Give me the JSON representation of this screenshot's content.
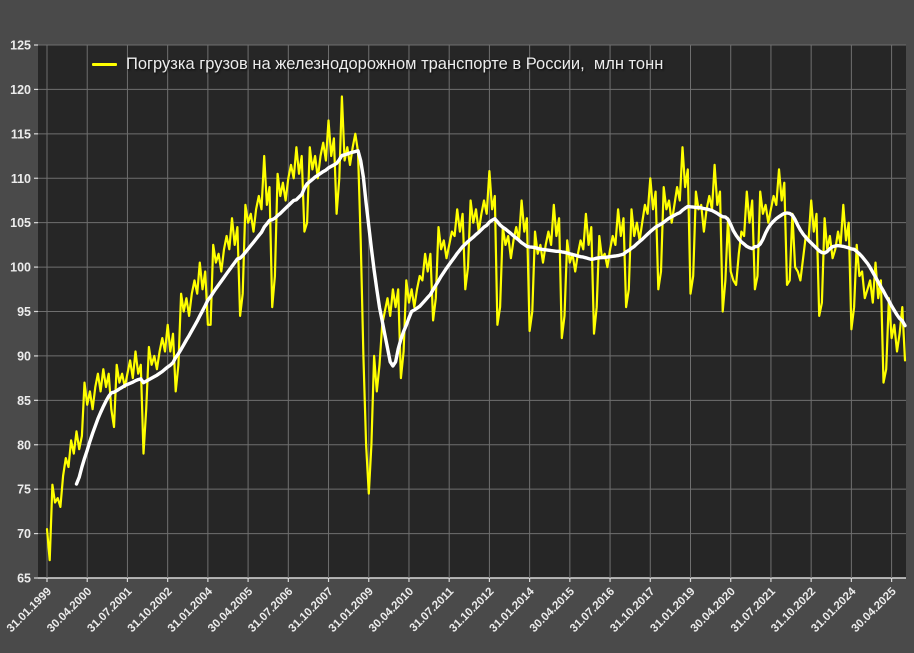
{
  "chart": {
    "legend_label": "Погрузка грузов на железнодорожном транспорте в России,  млн тонн"
  },
  "chart_data": {
    "type": "line",
    "title": "",
    "legend_position": "top-left",
    "grid": true,
    "ylim": [
      65,
      125
    ],
    "y_tick_step": 5,
    "x_unit": "month",
    "x_start_label": "31.01.1999",
    "x_tick_interval_months": 15,
    "x_tick_labels": [
      "31.01.1999",
      "30.04.2000",
      "31.07.2001",
      "31.10.2002",
      "31.01.2004",
      "30.04.2005",
      "31.07.2006",
      "31.10.2007",
      "31.01.2009",
      "30.04.2010",
      "31.07.2011",
      "31.10.2012",
      "31.01.2014",
      "30.04.2015",
      "31.07.2016",
      "31.10.2017",
      "31.01.2019",
      "30.04.2020",
      "31.07.2021",
      "31.10.2022",
      "31.01.2024",
      "30.04.2025"
    ],
    "series": [
      {
        "id": "monthly-loading",
        "name": "Погрузка грузов на железнодорожном транспорте в России,  млн тонн",
        "color": "#ffff00",
        "values": [
          70.5,
          67.0,
          75.5,
          73.5,
          74.0,
          73.0,
          76.5,
          78.5,
          77.5,
          80.5,
          79.0,
          81.5,
          79.5,
          81.0,
          87.0,
          84.5,
          86.0,
          84.0,
          86.5,
          88.0,
          86.0,
          88.5,
          86.5,
          88.0,
          84.0,
          82.0,
          89.0,
          87.0,
          88.0,
          86.5,
          88.0,
          89.5,
          87.5,
          90.5,
          88.0,
          89.0,
          79.0,
          84.0,
          91.0,
          89.0,
          90.0,
          88.5,
          90.5,
          92.0,
          90.5,
          93.5,
          90.5,
          92.5,
          86.0,
          89.0,
          97.0,
          95.0,
          96.5,
          94.5,
          97.0,
          98.5,
          97.0,
          100.5,
          97.5,
          99.5,
          93.5,
          93.5,
          102.5,
          100.5,
          101.5,
          99.5,
          102.0,
          103.5,
          102.0,
          105.5,
          102.5,
          104.5,
          94.5,
          97.0,
          107.0,
          105.0,
          106.0,
          104.0,
          106.5,
          108.0,
          106.5,
          112.5,
          107.0,
          109.0,
          95.5,
          99.0,
          110.5,
          108.0,
          109.5,
          107.5,
          110.0,
          111.5,
          110.0,
          113.5,
          110.5,
          112.5,
          104.0,
          105.0,
          113.5,
          111.0,
          112.5,
          110.0,
          112.5,
          114.0,
          112.0,
          116.5,
          112.5,
          114.5,
          106.0,
          110.0,
          119.2,
          112.0,
          113.5,
          111.5,
          113.5,
          115.0,
          113.0,
          103.0,
          90.0,
          80.0,
          74.5,
          80.0,
          90.0,
          86.0,
          89.0,
          93.5,
          95.0,
          96.5,
          94.5,
          97.5,
          95.5,
          97.5,
          87.5,
          90.5,
          98.5,
          96.0,
          97.5,
          95.5,
          97.5,
          99.0,
          98.5,
          101.5,
          99.5,
          101.5,
          94.0,
          96.5,
          104.5,
          102.0,
          103.0,
          101.0,
          102.5,
          104.0,
          103.5,
          106.5,
          104.0,
          106.0,
          97.5,
          100.0,
          107.5,
          105.0,
          106.5,
          104.0,
          106.0,
          107.5,
          106.0,
          110.8,
          106.5,
          108.0,
          93.5,
          95.5,
          104.5,
          102.5,
          103.5,
          101.0,
          103.0,
          104.5,
          103.0,
          107.5,
          104.0,
          105.5,
          92.8,
          95.0,
          104.0,
          101.5,
          102.5,
          100.5,
          102.5,
          104.0,
          102.5,
          107.0,
          103.5,
          105.5,
          92.0,
          94.5,
          103.0,
          100.5,
          101.5,
          99.5,
          101.5,
          103.0,
          102.0,
          106.0,
          102.5,
          104.5,
          92.5,
          95.5,
          103.5,
          101.0,
          101.5,
          100.0,
          102.0,
          103.5,
          102.5,
          106.5,
          103.5,
          105.5,
          95.5,
          97.5,
          106.5,
          103.5,
          105.0,
          103.0,
          105.0,
          107.0,
          106.0,
          110.0,
          106.5,
          108.5,
          97.5,
          99.5,
          109.0,
          106.5,
          107.5,
          105.0,
          107.0,
          109.0,
          107.5,
          113.5,
          109.0,
          111.0,
          97.0,
          99.0,
          108.5,
          106.5,
          107.0,
          104.0,
          106.5,
          108.0,
          106.5,
          111.5,
          107.0,
          108.5,
          95.0,
          98.5,
          105.5,
          99.5,
          98.5,
          98.0,
          101.5,
          104.0,
          103.5,
          108.5,
          105.0,
          107.5,
          97.5,
          99.0,
          108.5,
          106.0,
          107.0,
          105.0,
          106.5,
          108.0,
          107.0,
          111.0,
          107.5,
          109.5,
          98.0,
          98.5,
          106.0,
          100.0,
          99.5,
          98.5,
          101.0,
          103.5,
          103.0,
          107.5,
          104.0,
          106.0,
          94.5,
          96.0,
          105.5,
          102.0,
          103.5,
          101.0,
          102.0,
          104.0,
          102.5,
          107.0,
          103.0,
          105.0,
          93.0,
          95.5,
          102.5,
          99.0,
          99.5,
          96.5,
          97.5,
          98.5,
          96.0,
          100.5,
          96.5,
          98.5,
          87.0,
          88.5,
          96.5,
          92.0,
          93.5,
          90.5,
          92.5,
          95.5,
          89.5
        ]
      },
      {
        "id": "smoothed-average",
        "color": "#ffffff",
        "computed_from": "monthly-loading",
        "window": 12
      }
    ],
    "colors": {
      "background": "#4a4a4a",
      "plot_background": "#262626",
      "gridline": "#6f6f6f",
      "axis_line": "#d9d9d9",
      "text": "#ececec"
    }
  }
}
